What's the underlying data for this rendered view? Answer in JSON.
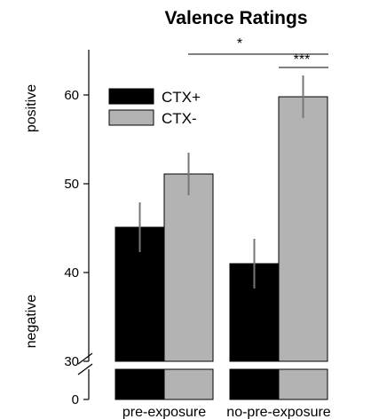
{
  "chart_data": {
    "type": "bar",
    "title": "Valence Ratings",
    "categories": [
      "pre-exposure",
      "no-pre-exposure"
    ],
    "series": [
      {
        "name": "CTX+",
        "color": "#000000",
        "values": [
          45.1,
          41.0
        ],
        "errors": [
          2.8,
          2.8
        ]
      },
      {
        "name": "CTX-",
        "color": "#b3b3b3",
        "values": [
          51.1,
          59.8
        ],
        "errors": [
          2.4,
          2.4
        ]
      }
    ],
    "y_ticks": [
      "60",
      "50",
      "40",
      "30",
      "0"
    ],
    "y_axis_break": [
      0,
      30
    ],
    "ylim": [
      0,
      65
    ],
    "ylabel_top": "positive",
    "ylabel_bottom": "negative",
    "significance": [
      {
        "label": "*",
        "between": "pre-exposure CTX- vs no-pre-exposure CTX-"
      },
      {
        "label": "***",
        "between": "no-pre-exposure CTX+ vs no-pre-exposure CTX-"
      }
    ],
    "legend_position": "top-left",
    "grid": false
  }
}
